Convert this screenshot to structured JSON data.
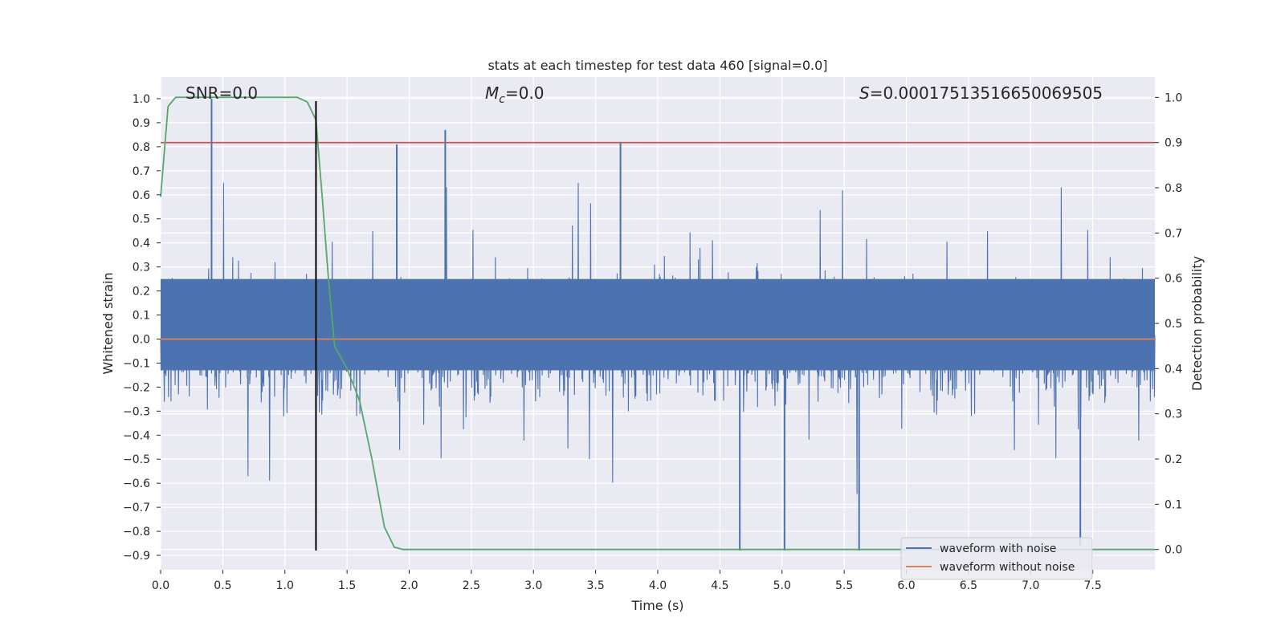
{
  "chart_data": {
    "type": "line",
    "title": "stats at each timestep for test data 460 [signal=0.0]",
    "xlabel": "Time (s)",
    "ylabel_left": "Whitened strain",
    "ylabel_right": "Detection probability",
    "xlim": [
      0.0,
      8.0
    ],
    "ylim_left": [
      -0.96,
      1.09
    ],
    "ylim_right": [
      -0.045,
      1.045
    ],
    "x_ticks": [
      "0.0",
      "0.5",
      "1.0",
      "1.5",
      "2.0",
      "2.5",
      "3.0",
      "3.5",
      "4.0",
      "4.5",
      "5.0",
      "5.5",
      "6.0",
      "6.5",
      "7.0",
      "7.5"
    ],
    "y_ticks_left": [
      "1.0",
      "0.9",
      "0.8",
      "0.7",
      "0.6",
      "0.5",
      "0.4",
      "0.3",
      "0.2",
      "0.1",
      "0.0",
      "-0.1",
      "-0.2",
      "-0.3",
      "-0.4",
      "-0.5",
      "-0.6",
      "-0.7",
      "-0.8",
      "-0.9"
    ],
    "y_ticks_right": [
      "1.0",
      "0.9",
      "0.8",
      "0.7",
      "0.6",
      "0.5",
      "0.4",
      "0.3",
      "0.2",
      "0.1",
      "0.0"
    ],
    "grid": true,
    "annotations": {
      "snr": "SNR=0.0",
      "mc_symbol": "M",
      "mc_sub": "c",
      "mc_value": "=0.0",
      "s_symbol": "S",
      "s_value": "=0.00017513516650069505"
    },
    "series": [
      {
        "name": "waveform with noise",
        "color": "#4c72b0",
        "style": "dense noise",
        "typical_range": [
          -0.5,
          0.45
        ],
        "max": 1.0,
        "min": -0.88,
        "notable_spikes": [
          {
            "x": 0.41,
            "y": 1.0
          },
          {
            "x": 2.29,
            "y": 0.87
          },
          {
            "x": 3.7,
            "y": 0.82
          },
          {
            "x": 1.9,
            "y": 0.81
          },
          {
            "x": 4.66,
            "y": -0.88
          },
          {
            "x": 5.02,
            "y": -0.88
          },
          {
            "x": 5.62,
            "y": -0.88
          },
          {
            "x": 7.4,
            "y": -0.86
          }
        ]
      },
      {
        "name": "waveform without noise",
        "color": "#dd8452",
        "x": [
          0.0,
          8.0
        ],
        "y": [
          0.0,
          0.0
        ]
      },
      {
        "name": "detection probability",
        "axis": "right",
        "color": "#55a868",
        "x": [
          0.0,
          0.06,
          0.12,
          0.2,
          0.4,
          0.6,
          0.8,
          1.0,
          1.1,
          1.18,
          1.25,
          1.3,
          1.35,
          1.4,
          1.5,
          1.6,
          1.7,
          1.8,
          1.88,
          1.95,
          2.2,
          8.0
        ],
        "y": [
          0.78,
          0.98,
          1.0,
          1.0,
          1.0,
          1.0,
          1.0,
          1.0,
          1.0,
          0.99,
          0.95,
          0.78,
          0.6,
          0.45,
          0.4,
          0.33,
          0.2,
          0.05,
          0.005,
          0.0,
          0.0,
          0.0
        ]
      },
      {
        "name": "threshold",
        "axis": "right",
        "color": "#c44e52",
        "y_constant": 0.9
      },
      {
        "name": "detection marker",
        "color": "#000000",
        "x_constant": 1.25,
        "y_range": [
          -0.88,
          0.99
        ]
      }
    ],
    "legend": {
      "position": "lower-right",
      "entries": [
        "waveform with noise",
        "waveform without noise"
      ]
    }
  }
}
